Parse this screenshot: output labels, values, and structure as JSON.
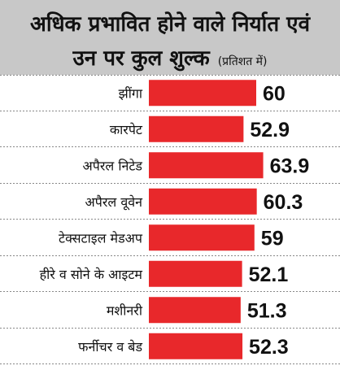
{
  "header": {
    "title_line1": "अधिक प्रभावित होने वाले निर्यात एवं",
    "title_line2": "उन पर कुल शुल्क",
    "subtitle": "(प्रतिशत में)"
  },
  "colors": {
    "header_bg": "#c8c8c8",
    "bar": "#e8282b",
    "divider": "#888888"
  },
  "chart_data": {
    "type": "bar",
    "orientation": "horizontal",
    "title": "अधिक प्रभावित होने वाले निर्यात एवं उन पर कुल शुल्क",
    "subtitle": "(प्रतिशत में)",
    "categories": [
      "झींगा",
      "कारपेट",
      "अपैरल निटेड",
      "अपैरल वूवेन",
      "टेक्सटाइल मेडअप",
      "हीरे व सोने के आइटम",
      "मशीनरी",
      "फर्नीचर व बेड"
    ],
    "values": [
      60,
      52.9,
      63.9,
      60.3,
      59,
      52.1,
      51.3,
      52.3
    ],
    "value_labels": [
      "60",
      "52.9",
      "63.9",
      "60.3",
      "59",
      "52.1",
      "51.3",
      "52.3"
    ],
    "grid": false
  }
}
